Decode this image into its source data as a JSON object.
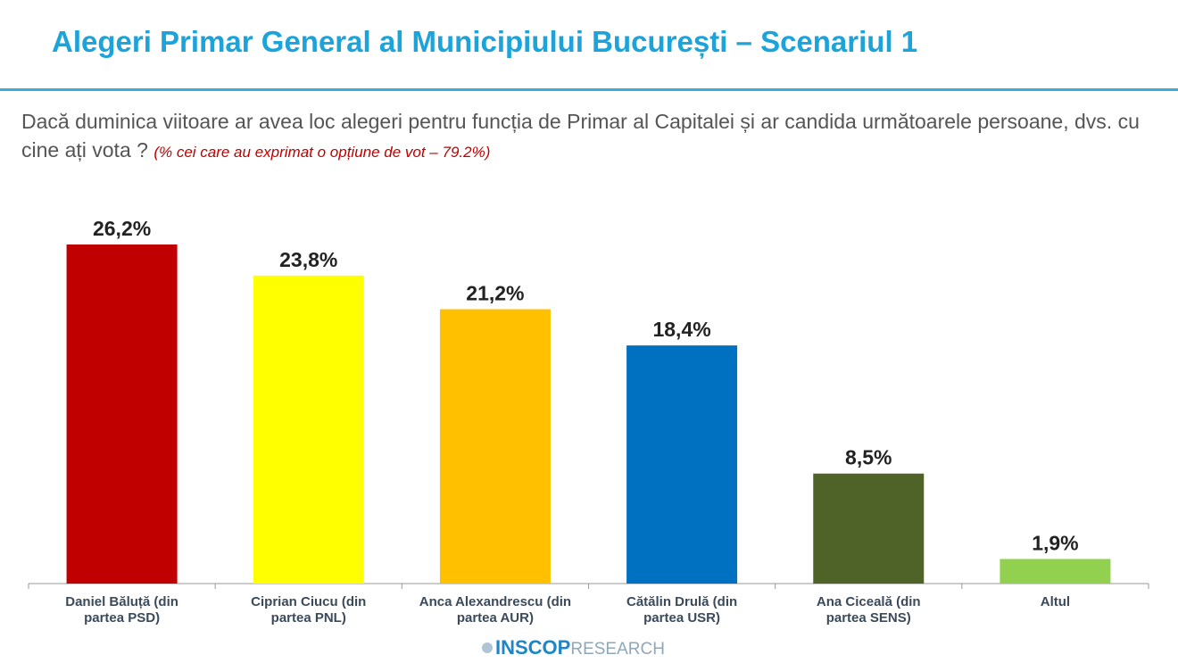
{
  "title": "Alegeri Primar General al Municipiului București – Scenariul 1",
  "question": "Dacă duminica viitoare ar avea loc alegeri pentru funcția de Primar al Capitalei și ar candida următoarele persoane, dvs. cu cine ați vota ?",
  "note": "(% cei care au exprimat o opțiune de vot – 79.2%)",
  "logo": {
    "bold": "INSCOP",
    "light": "RESEARCH"
  },
  "chart_data": {
    "type": "bar",
    "categories": [
      "Daniel Băluță (din partea PSD)",
      "Ciprian Ciucu (din partea PNL)",
      "Anca Alexandrescu (din partea AUR)",
      "Cătălin Drulă (din partea USR)",
      "Ana Ciceală (din partea SENS)",
      "Altul"
    ],
    "values": [
      26.2,
      23.8,
      21.2,
      18.4,
      8.5,
      1.9
    ],
    "data_labels": [
      "26,2%",
      "23,8%",
      "21,2%",
      "18,4%",
      "8,5%",
      "1,9%"
    ],
    "colors": [
      "#C00000",
      "#FFFF00",
      "#FFC000",
      "#0070C0",
      "#4F6228",
      "#92D050"
    ],
    "ylim": [
      0,
      26.2
    ],
    "grid": false,
    "legend": "none"
  }
}
